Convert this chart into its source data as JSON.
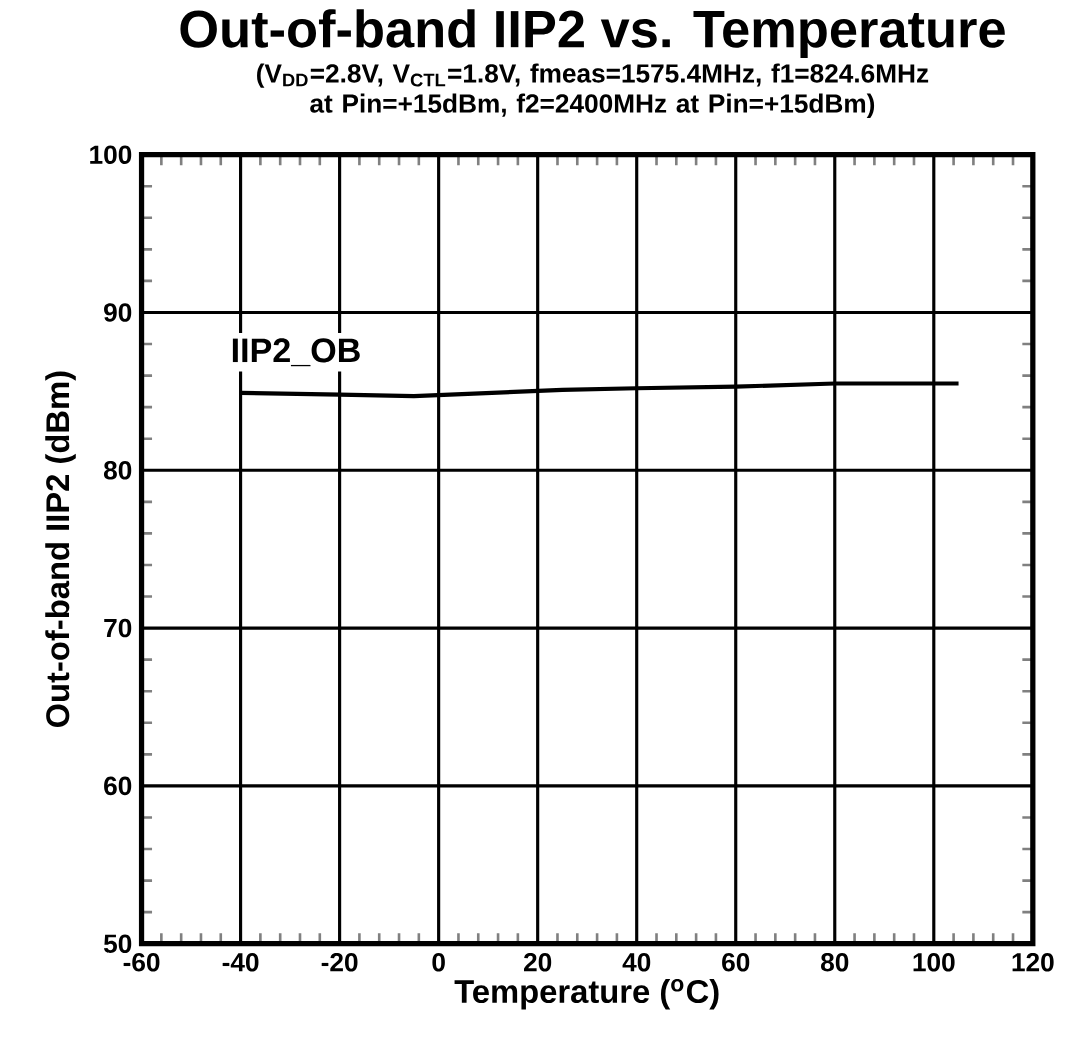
{
  "chart_data": {
    "type": "line",
    "title": "Out-of-band IIP2 vs. Temperature",
    "subtitle": "(V$_{DD}$=2.8V, V$_{CTL}$=1.8V, fmeas=1575.4MHz, f1=824.6MHz at Pin=+15dBm, f2=2400MHz at Pin=+15dBm)",
    "xlabel": "Temperature ($^{o}$C)",
    "ylabel": "Out-of-band IIP2 (dBm)",
    "series": [
      {
        "name": "IIP2_OB",
        "color": "#000000",
        "x": [
          -40,
          -20,
          -5,
          10,
          25,
          40,
          60,
          80,
          105
        ],
        "values": [
          84.9,
          84.8,
          84.7,
          84.9,
          85.1,
          85.2,
          85.3,
          85.5,
          85.5
        ]
      }
    ],
    "xlim": [
      -60,
      120
    ],
    "xticks": [
      -60,
      -40,
      -20,
      0,
      20,
      40,
      60,
      80,
      100,
      120
    ],
    "ylim": [
      50,
      100
    ],
    "yticks": [
      50,
      60,
      70,
      80,
      90,
      100
    ],
    "grid": true,
    "legend": false,
    "marker": "none",
    "line_style": "solid"
  }
}
